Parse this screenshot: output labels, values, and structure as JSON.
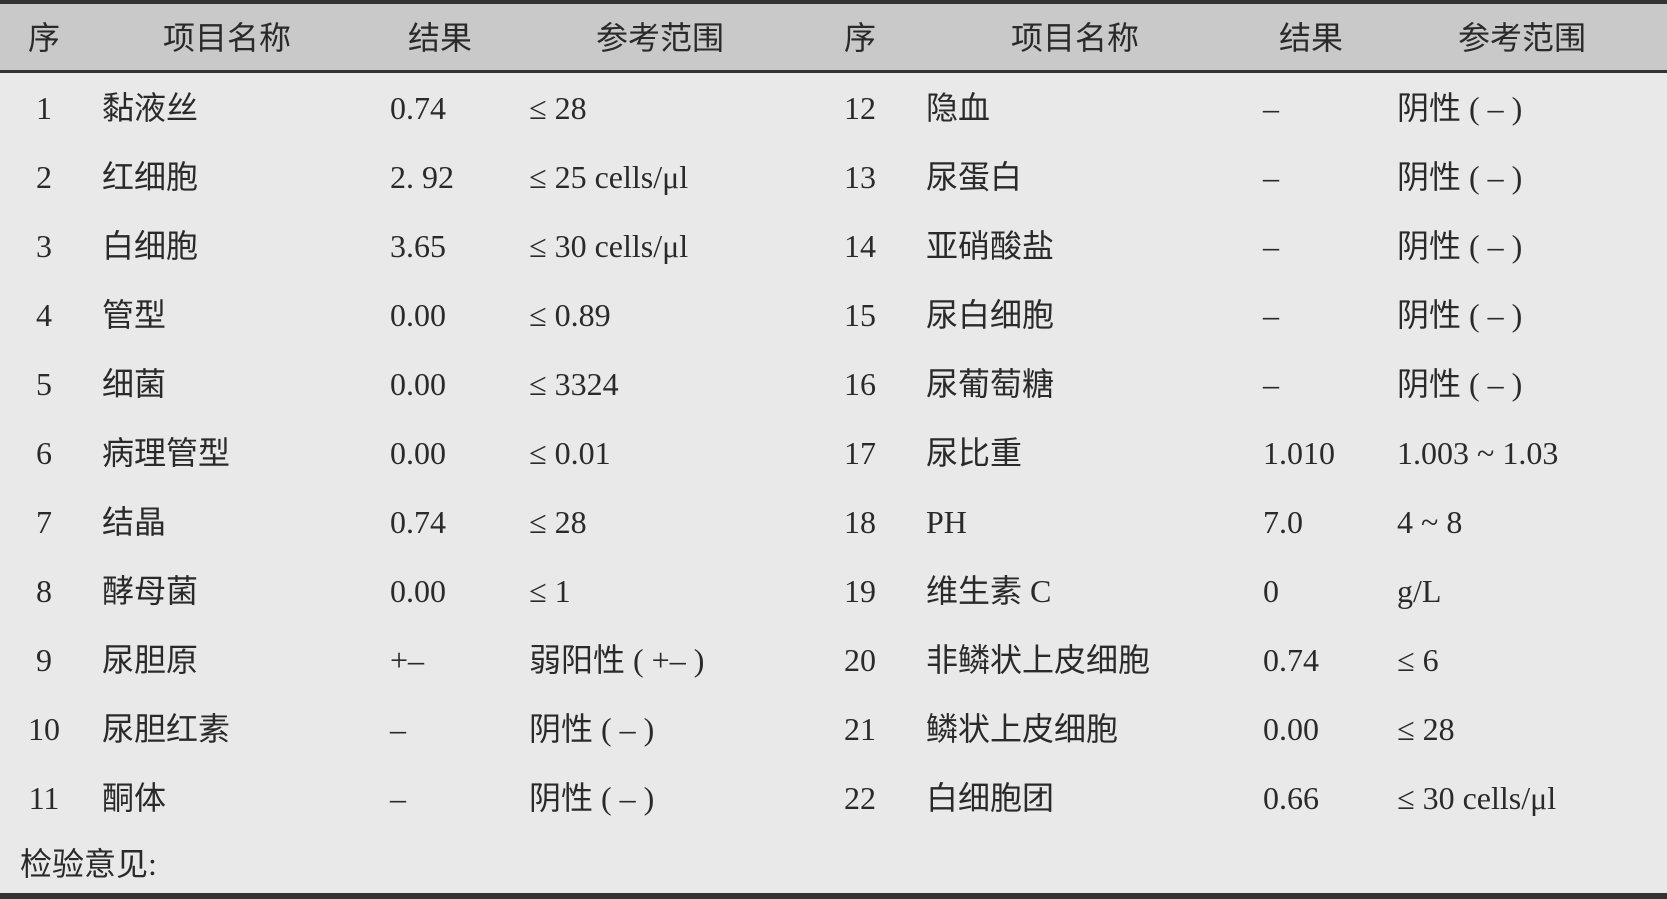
{
  "headers": [
    "序",
    "项目名称",
    "结果",
    "参考范围",
    "序",
    "项目名称",
    "结果",
    "参考范围"
  ],
  "rows_left": [
    [
      "1",
      "黏液丝",
      "0.74",
      "≤ 28"
    ],
    [
      "2",
      "红细胞",
      "2. 92",
      "≤ 25 cells/μl"
    ],
    [
      "3",
      "白细胞",
      "3.65",
      "≤ 30 cells/μl"
    ],
    [
      "4",
      "管型",
      "0.00",
      "≤ 0.89"
    ],
    [
      "5",
      "细菌",
      "0.00",
      "≤ 3324"
    ],
    [
      "6",
      "病理管型",
      "0.00",
      "≤ 0.01"
    ],
    [
      "7",
      "结晶",
      "0.74",
      "≤ 28"
    ],
    [
      "8",
      "酵母菌",
      "0.00",
      "≤ 1"
    ],
    [
      "9",
      "尿胆原",
      "+–",
      "弱阳性 ( +– )"
    ],
    [
      "10",
      "尿胆红素",
      "–",
      "阴性 ( – )"
    ],
    [
      "11",
      "酮体",
      "–",
      "阴性 ( – )"
    ]
  ],
  "rows_right": [
    [
      "12",
      "隐血",
      "–",
      "阴性 ( – )"
    ],
    [
      "13",
      "尿蛋白",
      "–",
      "阴性 ( – )"
    ],
    [
      "14",
      "亚硝酸盐",
      "–",
      "阴性 ( – )"
    ],
    [
      "15",
      "尿白细胞",
      "–",
      "阴性 ( – )"
    ],
    [
      "16",
      "尿葡萄糖",
      "–",
      "阴性 ( – )"
    ],
    [
      "17",
      "尿比重",
      "1.010",
      "1.003 ~ 1.03"
    ],
    [
      "18",
      "PH",
      "7.0",
      "4 ~ 8"
    ],
    [
      "19",
      "维生素 C",
      "0",
      "g/L"
    ],
    [
      "20",
      "非鳞状上皮细胞",
      "0.74",
      "≤ 6"
    ],
    [
      "21",
      "鳞状上皮细胞",
      "0.00",
      "≤ 28"
    ],
    [
      "22",
      "白细胞团",
      "0.66",
      "≤ 30 cells/μl"
    ]
  ],
  "comment": "检验意见:"
}
